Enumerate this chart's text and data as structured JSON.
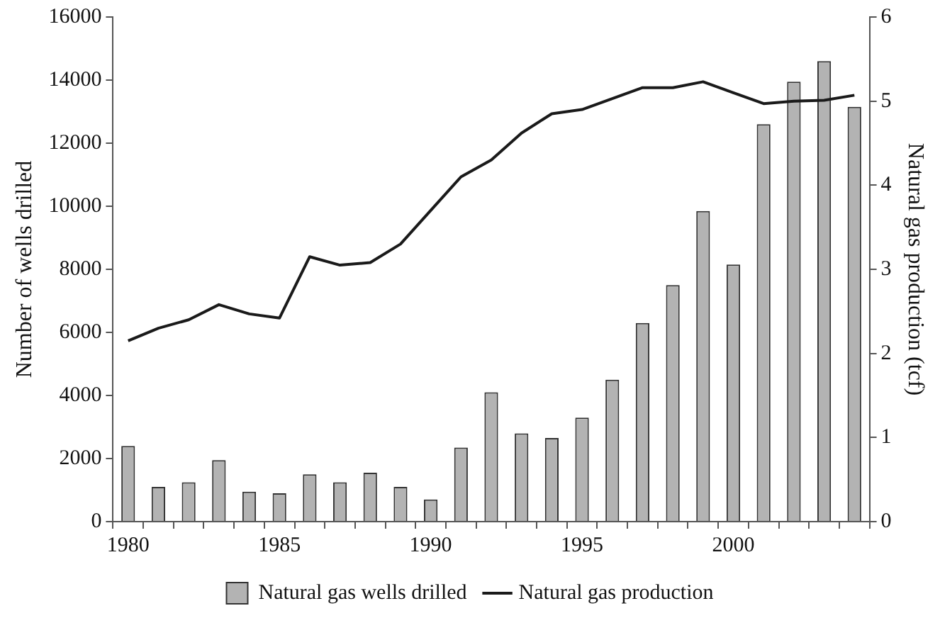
{
  "chart_data": {
    "type": "bar",
    "categories": [
      "1980",
      null,
      null,
      null,
      null,
      "1985",
      null,
      null,
      null,
      null,
      "1990",
      null,
      null,
      null,
      null,
      "1995",
      null,
      null,
      null,
      null,
      "2000",
      null,
      null,
      null,
      null
    ],
    "ylabel": "Number of wells drilled",
    "y2label": "Natural gas production (tcf)",
    "ylim": [
      0,
      16000
    ],
    "yticks": [
      0,
      2000,
      4000,
      6000,
      8000,
      10000,
      12000,
      14000,
      16000
    ],
    "y2lim": [
      0,
      6
    ],
    "y2ticks": [
      0,
      1,
      2,
      3,
      4,
      5,
      6
    ],
    "grid": false,
    "legend": "bottom",
    "series": [
      {
        "name": "Natural gas wells drilled",
        "color": "#b3b3b3",
        "values": [
          2400,
          1100,
          1250,
          1950,
          950,
          900,
          1500,
          1250,
          1550,
          1100,
          700,
          2350,
          4100,
          2800,
          2650,
          3300,
          4500,
          6300,
          7500,
          9850,
          8150,
          12600,
          13950,
          14600,
          13150
        ]
      },
      {
        "name": "Natural gas production",
        "type": "line",
        "axis": "y2",
        "color": "#1a1a1a",
        "values": [
          2.15,
          2.3,
          2.4,
          2.58,
          2.47,
          2.42,
          3.15,
          3.05,
          3.08,
          3.3,
          3.7,
          4.1,
          4.3,
          4.62,
          4.85,
          4.9,
          5.03,
          5.16,
          5.16,
          5.23,
          5.1,
          4.97,
          5.0,
          5.01,
          5.07
        ]
      }
    ]
  }
}
